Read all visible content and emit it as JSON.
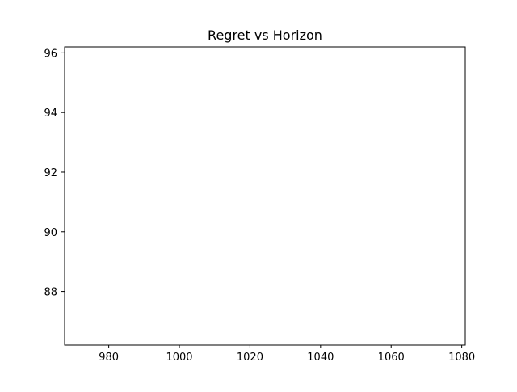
{
  "chart_data": {
    "type": "line",
    "title": "Regret vs Horizon",
    "xlabel": "",
    "ylabel": "",
    "xlim": [
      967.5,
      1081.0
    ],
    "ylim": [
      86.2,
      96.2
    ],
    "xticks": [
      980,
      1000,
      1020,
      1040,
      1060,
      1080
    ],
    "yticks": [
      88,
      90,
      92,
      94,
      96
    ],
    "grid": false,
    "series": []
  }
}
